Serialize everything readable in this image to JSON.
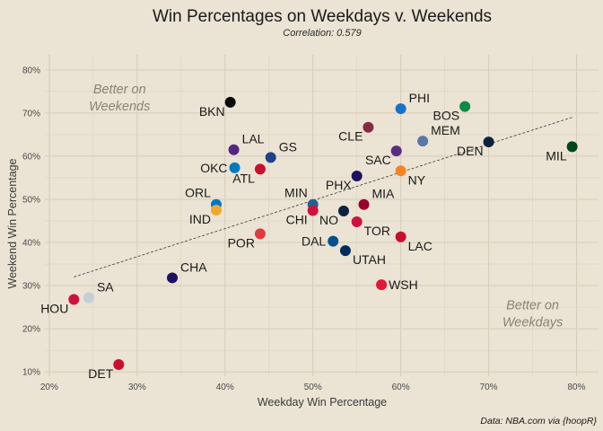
{
  "chart_data": {
    "type": "scatter",
    "title": "Win Percentages on Weekdays v. Weekends",
    "subtitle": "Correlation: 0.579",
    "xlabel": "Weekday Win Percentage",
    "ylabel": "Weekend Win Percentage",
    "caption": "Data: NBA.com via {hoopR}",
    "xlim": [
      0.195,
      0.825
    ],
    "ylim": [
      0.09,
      0.835
    ],
    "x_ticks": [
      0.2,
      0.3,
      0.4,
      0.5,
      0.6,
      0.7,
      0.8
    ],
    "x_tick_labels": [
      "20%",
      "30%",
      "40%",
      "50%",
      "60%",
      "70%",
      "80%"
    ],
    "y_ticks": [
      0.1,
      0.2,
      0.3,
      0.4,
      0.5,
      0.6,
      0.7,
      0.8
    ],
    "y_tick_labels": [
      "10%",
      "20%",
      "30%",
      "40%",
      "50%",
      "60%",
      "70%",
      "80%"
    ],
    "grid": true,
    "trend_line": {
      "x": [
        0.228,
        0.795
      ],
      "y": [
        0.32,
        0.69
      ],
      "style": "dashed"
    },
    "annotations": [
      {
        "text": "Better on\nWeekends",
        "x": 0.28,
        "y": 0.745
      },
      {
        "text": "Better on\nWeekdays",
        "x": 0.75,
        "y": 0.245
      }
    ],
    "points": [
      {
        "team": "BKN",
        "x": 0.406,
        "y": 0.725,
        "color": "#0a0a0a",
        "label_pos": "bl"
      },
      {
        "team": "PHI",
        "x": 0.6,
        "y": 0.71,
        "color": "#1472c8",
        "label_pos": "tr"
      },
      {
        "team": "BOS",
        "x": 0.673,
        "y": 0.715,
        "color": "#0b8a44",
        "label_pos": "bl"
      },
      {
        "team": "CLE",
        "x": 0.563,
        "y": 0.667,
        "color": "#862a44",
        "label_pos": "bl"
      },
      {
        "team": "MEM",
        "x": 0.625,
        "y": 0.635,
        "color": "#5d76a9",
        "label_pos": "tr"
      },
      {
        "team": "DEN",
        "x": 0.7,
        "y": 0.633,
        "color": "#0e2240",
        "label_pos": "bl"
      },
      {
        "team": "MIL",
        "x": 0.795,
        "y": 0.622,
        "color": "#00471b",
        "label_pos": "bl"
      },
      {
        "team": "LAL",
        "x": 0.41,
        "y": 0.615,
        "color": "#552583",
        "label_pos": "tr"
      },
      {
        "team": "GS",
        "x": 0.452,
        "y": 0.597,
        "color": "#1d428a",
        "label_pos": "tr"
      },
      {
        "team": "SAC",
        "x": 0.595,
        "y": 0.612,
        "color": "#5a2d81",
        "label_pos": "bl"
      },
      {
        "team": "OKC",
        "x": 0.411,
        "y": 0.573,
        "color": "#007ac1",
        "label_pos": "l"
      },
      {
        "team": "ATL",
        "x": 0.44,
        "y": 0.57,
        "color": "#c8102e",
        "label_pos": "bl"
      },
      {
        "team": "NY",
        "x": 0.6,
        "y": 0.566,
        "color": "#f58426",
        "label_pos": "br"
      },
      {
        "team": "PHX",
        "x": 0.55,
        "y": 0.554,
        "color": "#1d1160",
        "label_pos": "bl"
      },
      {
        "team": "ORL",
        "x": 0.39,
        "y": 0.488,
        "color": "#0077c0",
        "label_pos": "tl"
      },
      {
        "team": "IND",
        "x": 0.39,
        "y": 0.475,
        "color": "#f0a92c",
        "label_pos": "bl"
      },
      {
        "team": "MIN",
        "x": 0.5,
        "y": 0.488,
        "color": "#236192",
        "label_pos": "tl"
      },
      {
        "team": "CHI",
        "x": 0.5,
        "y": 0.474,
        "color": "#ce1141",
        "label_pos": "bl"
      },
      {
        "team": "MIA",
        "x": 0.558,
        "y": 0.488,
        "color": "#98002e",
        "label_pos": "tr"
      },
      {
        "team": "NO",
        "x": 0.535,
        "y": 0.473,
        "color": "#0c2340",
        "label_pos": "bl"
      },
      {
        "team": "TOR",
        "x": 0.55,
        "y": 0.448,
        "color": "#ce1141",
        "label_pos": "br"
      },
      {
        "team": "POR",
        "x": 0.44,
        "y": 0.42,
        "color": "#e03a3e",
        "label_pos": "bl"
      },
      {
        "team": "DAL",
        "x": 0.523,
        "y": 0.403,
        "color": "#00538c",
        "label_pos": "l"
      },
      {
        "team": "LAC",
        "x": 0.6,
        "y": 0.413,
        "color": "#c8102e",
        "label_pos": "br"
      },
      {
        "team": "UTAH",
        "x": 0.537,
        "y": 0.381,
        "color": "#002b5c",
        "label_pos": "br"
      },
      {
        "team": "CHA",
        "x": 0.34,
        "y": 0.318,
        "color": "#1d1160",
        "label_pos": "tr"
      },
      {
        "team": "WSH",
        "x": 0.578,
        "y": 0.302,
        "color": "#e31837",
        "label_pos": "r"
      },
      {
        "team": "SA",
        "x": 0.245,
        "y": 0.272,
        "color": "#c4ced4",
        "label_pos": "tr"
      },
      {
        "team": "HOU",
        "x": 0.228,
        "y": 0.268,
        "color": "#ce1141",
        "label_pos": "bl"
      },
      {
        "team": "DET",
        "x": 0.279,
        "y": 0.117,
        "color": "#c8102e",
        "label_pos": "bl"
      }
    ]
  }
}
